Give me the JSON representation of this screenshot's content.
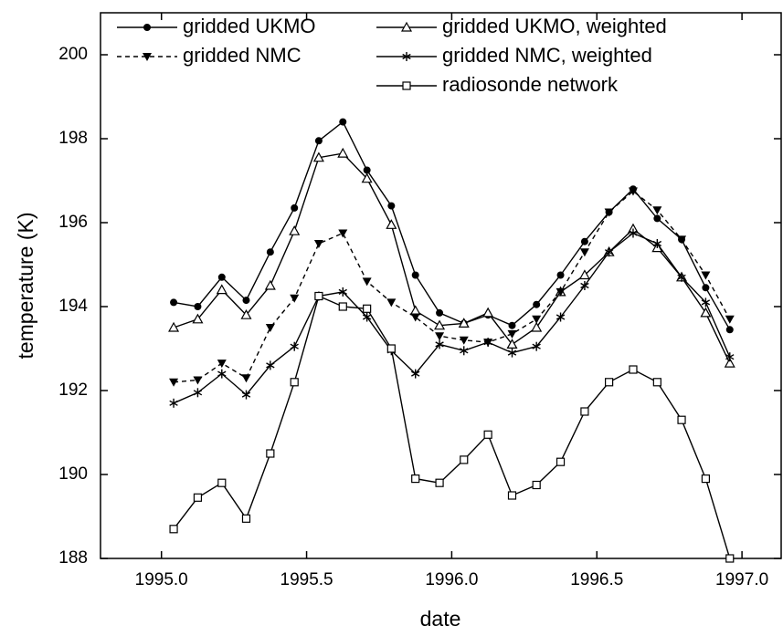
{
  "chart_data": {
    "type": "line",
    "x_label": "date",
    "y_label": "temperature (K)",
    "x": [
      1995.042,
      1995.125,
      1995.208,
      1995.292,
      1995.375,
      1995.458,
      1995.542,
      1995.625,
      1995.708,
      1995.792,
      1995.875,
      1995.958,
      1996.042,
      1996.125,
      1996.208,
      1996.292,
      1996.375,
      1996.458,
      1996.542,
      1996.625,
      1996.708,
      1996.792,
      1996.875,
      1996.958
    ],
    "series": [
      {
        "name": "gridded UKMO",
        "color": "#000000",
        "marker": "circle",
        "dash": "solid",
        "values": [
          194.1,
          194.0,
          194.7,
          194.15,
          195.3,
          196.35,
          197.95,
          198.4,
          197.25,
          196.4,
          194.75,
          193.85,
          193.6,
          193.8,
          193.55,
          194.05,
          194.75,
          195.55,
          196.25,
          196.8,
          196.1,
          195.6,
          194.45,
          193.45
        ]
      },
      {
        "name": "gridded UKMO, weighted",
        "color": "#000000",
        "marker": "triangle-up-open",
        "dash": "solid",
        "values": [
          193.5,
          193.7,
          194.4,
          193.8,
          194.5,
          195.8,
          197.55,
          197.65,
          197.05,
          195.95,
          193.9,
          193.55,
          193.6,
          193.85,
          193.1,
          193.5,
          194.35,
          194.75,
          195.3,
          195.85,
          195.4,
          194.7,
          193.85,
          192.65
        ]
      },
      {
        "name": "gridded NMC",
        "color": "#000000",
        "marker": "triangle-down",
        "dash": "dashed",
        "values": [
          192.2,
          192.25,
          192.65,
          192.3,
          193.5,
          194.2,
          195.5,
          195.75,
          194.6,
          194.1,
          193.75,
          193.3,
          193.2,
          193.15,
          193.35,
          193.7,
          194.35,
          195.3,
          196.25,
          196.75,
          196.3,
          195.6,
          194.75,
          193.7
        ]
      },
      {
        "name": "gridded NMC, weighted",
        "color": "#000000",
        "marker": "asterisk",
        "dash": "solid",
        "values": [
          191.7,
          191.95,
          192.4,
          191.9,
          192.6,
          193.05,
          194.25,
          194.35,
          193.75,
          192.95,
          192.4,
          193.1,
          192.95,
          193.15,
          192.9,
          193.05,
          193.75,
          194.5,
          195.3,
          195.75,
          195.5,
          194.7,
          194.1,
          192.8
        ]
      },
      {
        "name": "radiosonde network",
        "color": "#000000",
        "marker": "square-open",
        "dash": "solid",
        "values": [
          188.7,
          189.45,
          189.8,
          188.95,
          190.5,
          192.2,
          194.25,
          194.0,
          193.95,
          193.0,
          189.9,
          189.8,
          190.35,
          190.95,
          189.5,
          189.75,
          190.3,
          191.5,
          192.2,
          192.5,
          192.2,
          191.3,
          189.9,
          188.0
        ]
      }
    ],
    "xlim": [
      1994.79,
      1997.135
    ],
    "ylim": [
      188,
      201
    ],
    "xticks": [
      {
        "value": 1995.0,
        "label": "1995.0"
      },
      {
        "value": 1995.5,
        "label": "1995.5"
      },
      {
        "value": 1996.0,
        "label": "1996.0"
      },
      {
        "value": 1996.5,
        "label": "1996.5"
      },
      {
        "value": 1997.0,
        "label": "1997.0"
      }
    ],
    "yticks": [
      188,
      190,
      192,
      194,
      196,
      198,
      200
    ],
    "grid": false,
    "legend": "top"
  }
}
